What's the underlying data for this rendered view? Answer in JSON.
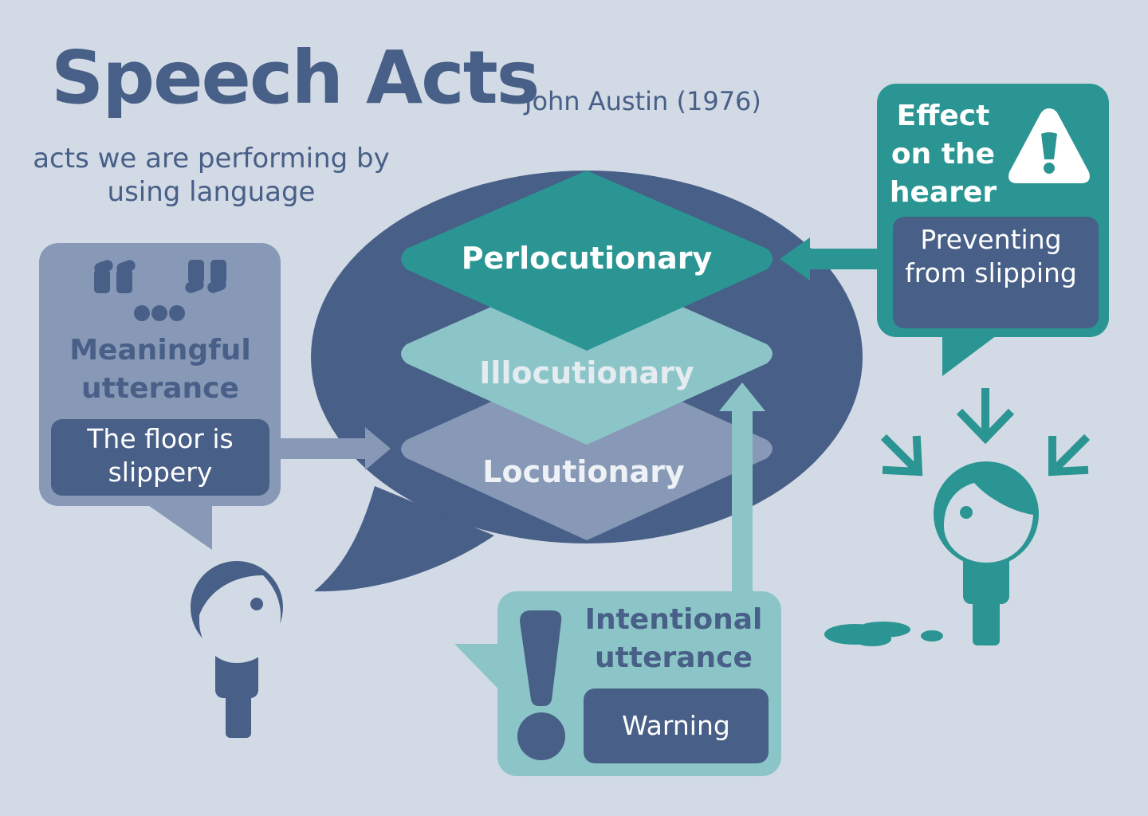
{
  "title": "Speech Acts",
  "author": "John Austin (1976)",
  "subtitle": "acts we are performing by using language",
  "layers": {
    "perlocutionary": "Perlocutionary",
    "illocutionary": "Illocutionary",
    "locutionary": "Locutionary"
  },
  "meaningful": {
    "title": "Meaningful utterance",
    "example": "The floor is slippery"
  },
  "intentional": {
    "title": "Intentional utterance",
    "example": "Warning"
  },
  "effect": {
    "title": "Effect on the hearer",
    "example": "Preventing from slipping"
  },
  "colors": {
    "background": "#d2dae5",
    "navy": "#485f87",
    "teal": "#2a9592",
    "light_teal": "#8cc5c7",
    "slate": "#8799b6"
  },
  "icons": [
    "quote-icon",
    "exclamation-icon",
    "warning-triangle-icon",
    "speaker-figure",
    "hearer-figure",
    "spill-puddle"
  ]
}
